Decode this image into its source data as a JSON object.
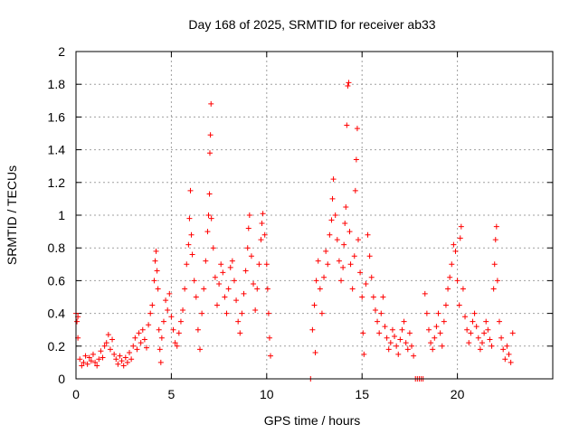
{
  "chart_data": {
    "type": "scatter",
    "title": "Day 168 of 2025, SRMTID for receiver ab33",
    "xlabel": "GPS time / hours",
    "ylabel": "SRMTID / TECUs",
    "xlim": [
      0,
      25
    ],
    "ylim": [
      0,
      2
    ],
    "xticks": [
      0,
      5,
      10,
      15,
      20
    ],
    "xtick_labels": [
      "0",
      "5",
      "10",
      "15",
      "20"
    ],
    "yticks": [
      0,
      0.2,
      0.4,
      0.6,
      0.8,
      1,
      1.2,
      1.4,
      1.6,
      1.8,
      2
    ],
    "ytick_labels": [
      "0",
      "0.2",
      "0.4",
      "0.6",
      "0.8",
      "1",
      "1.2",
      "1.4",
      "1.6",
      "1.8",
      "2"
    ],
    "grid": true,
    "marker": "+",
    "color": "#ff0000",
    "series": [
      {
        "name": "SRMTID",
        "points": [
          [
            0.0,
            0.4
          ],
          [
            0.05,
            0.35
          ],
          [
            0.1,
            0.25
          ],
          [
            0.1,
            0.38
          ],
          [
            0.2,
            0.12
          ],
          [
            0.3,
            0.08
          ],
          [
            0.4,
            0.1
          ],
          [
            0.5,
            0.14
          ],
          [
            0.6,
            0.09
          ],
          [
            0.7,
            0.13
          ],
          [
            0.8,
            0.11
          ],
          [
            0.9,
            0.15
          ],
          [
            1.0,
            0.1
          ],
          [
            1.1,
            0.08
          ],
          [
            1.2,
            0.12
          ],
          [
            1.3,
            0.17
          ],
          [
            1.4,
            0.13
          ],
          [
            1.5,
            0.2
          ],
          [
            1.6,
            0.22
          ],
          [
            1.7,
            0.27
          ],
          [
            1.8,
            0.18
          ],
          [
            1.9,
            0.24
          ],
          [
            2.0,
            0.15
          ],
          [
            2.1,
            0.12
          ],
          [
            2.2,
            0.09
          ],
          [
            2.3,
            0.14
          ],
          [
            2.4,
            0.11
          ],
          [
            2.5,
            0.08
          ],
          [
            2.6,
            0.13
          ],
          [
            2.7,
            0.1
          ],
          [
            2.8,
            0.16
          ],
          [
            2.9,
            0.12
          ],
          [
            3.0,
            0.2
          ],
          [
            3.1,
            0.25
          ],
          [
            3.2,
            0.18
          ],
          [
            3.3,
            0.28
          ],
          [
            3.4,
            0.22
          ],
          [
            3.5,
            0.3
          ],
          [
            3.6,
            0.24
          ],
          [
            3.7,
            0.19
          ],
          [
            3.8,
            0.33
          ],
          [
            3.9,
            0.4
          ],
          [
            4.0,
            0.45
          ],
          [
            4.1,
            0.6
          ],
          [
            4.15,
            0.72
          ],
          [
            4.2,
            0.78
          ],
          [
            4.25,
            0.66
          ],
          [
            4.3,
            0.55
          ],
          [
            4.35,
            0.3
          ],
          [
            4.4,
            0.18
          ],
          [
            4.45,
            0.1
          ],
          [
            4.5,
            0.25
          ],
          [
            4.6,
            0.35
          ],
          [
            4.7,
            0.48
          ],
          [
            4.8,
            0.42
          ],
          [
            4.9,
            0.52
          ],
          [
            5.0,
            0.38
          ],
          [
            5.1,
            0.3
          ],
          [
            5.2,
            0.22
          ],
          [
            5.3,
            0.2
          ],
          [
            5.4,
            0.28
          ],
          [
            5.5,
            0.35
          ],
          [
            5.6,
            0.42
          ],
          [
            5.7,
            0.55
          ],
          [
            5.8,
            0.7
          ],
          [
            5.9,
            0.82
          ],
          [
            5.95,
            0.98
          ],
          [
            6.0,
            1.15
          ],
          [
            6.05,
            0.88
          ],
          [
            6.1,
            0.76
          ],
          [
            6.2,
            0.6
          ],
          [
            6.3,
            0.5
          ],
          [
            6.4,
            0.3
          ],
          [
            6.5,
            0.18
          ],
          [
            6.6,
            0.4
          ],
          [
            6.7,
            0.55
          ],
          [
            6.8,
            0.72
          ],
          [
            6.9,
            0.9
          ],
          [
            6.95,
            1.0
          ],
          [
            7.0,
            1.13
          ],
          [
            7.02,
            1.38
          ],
          [
            7.05,
            1.49
          ],
          [
            7.08,
            1.68
          ],
          [
            7.1,
            0.98
          ],
          [
            7.2,
            0.8
          ],
          [
            7.3,
            0.62
          ],
          [
            7.4,
            0.45
          ],
          [
            7.5,
            0.58
          ],
          [
            7.6,
            0.7
          ],
          [
            7.7,
            0.65
          ],
          [
            7.8,
            0.5
          ],
          [
            7.9,
            0.4
          ],
          [
            8.0,
            0.55
          ],
          [
            8.1,
            0.68
          ],
          [
            8.2,
            0.72
          ],
          [
            8.3,
            0.6
          ],
          [
            8.4,
            0.48
          ],
          [
            8.5,
            0.35
          ],
          [
            8.6,
            0.28
          ],
          [
            8.7,
            0.4
          ],
          [
            8.8,
            0.52
          ],
          [
            8.9,
            0.66
          ],
          [
            9.0,
            0.8
          ],
          [
            9.05,
            0.92
          ],
          [
            9.1,
            1.0
          ],
          [
            9.2,
            0.75
          ],
          [
            9.3,
            0.58
          ],
          [
            9.4,
            0.42
          ],
          [
            9.5,
            0.55
          ],
          [
            9.6,
            0.7
          ],
          [
            9.7,
            0.85
          ],
          [
            9.75,
            0.95
          ],
          [
            9.8,
            1.01
          ],
          [
            9.9,
            0.88
          ],
          [
            10.0,
            0.7
          ],
          [
            10.05,
            0.55
          ],
          [
            10.1,
            0.4
          ],
          [
            10.15,
            0.25
          ],
          [
            10.2,
            0.14
          ],
          [
            12.3,
            0.0
          ],
          [
            12.4,
            0.3
          ],
          [
            12.5,
            0.45
          ],
          [
            12.55,
            0.16
          ],
          [
            12.6,
            0.6
          ],
          [
            12.7,
            0.72
          ],
          [
            12.8,
            0.55
          ],
          [
            12.9,
            0.4
          ],
          [
            13.0,
            0.62
          ],
          [
            13.1,
            0.78
          ],
          [
            13.2,
            0.7
          ],
          [
            13.3,
            0.88
          ],
          [
            13.4,
            0.97
          ],
          [
            13.45,
            1.1
          ],
          [
            13.5,
            1.22
          ],
          [
            13.6,
            1.0
          ],
          [
            13.7,
            0.85
          ],
          [
            13.8,
            0.72
          ],
          [
            13.9,
            0.6
          ],
          [
            14.0,
            0.68
          ],
          [
            14.05,
            0.82
          ],
          [
            14.1,
            0.95
          ],
          [
            14.15,
            1.05
          ],
          [
            14.2,
            1.55
          ],
          [
            14.25,
            1.79
          ],
          [
            14.3,
            1.81
          ],
          [
            14.35,
            0.9
          ],
          [
            14.4,
            0.7
          ],
          [
            14.5,
            0.55
          ],
          [
            14.6,
            0.75
          ],
          [
            14.65,
            1.15
          ],
          [
            14.7,
            1.34
          ],
          [
            14.75,
            1.53
          ],
          [
            14.8,
            0.85
          ],
          [
            14.9,
            0.65
          ],
          [
            15.0,
            0.5
          ],
          [
            15.05,
            0.28
          ],
          [
            15.1,
            0.15
          ],
          [
            15.2,
            0.58
          ],
          [
            15.3,
            0.88
          ],
          [
            15.4,
            0.75
          ],
          [
            15.5,
            0.62
          ],
          [
            15.6,
            0.5
          ],
          [
            15.7,
            0.42
          ],
          [
            15.8,
            0.35
          ],
          [
            15.9,
            0.28
          ],
          [
            16.0,
            0.4
          ],
          [
            16.1,
            0.5
          ],
          [
            16.2,
            0.32
          ],
          [
            16.3,
            0.25
          ],
          [
            16.4,
            0.18
          ],
          [
            16.5,
            0.22
          ],
          [
            16.6,
            0.3
          ],
          [
            16.7,
            0.26
          ],
          [
            16.8,
            0.2
          ],
          [
            16.9,
            0.15
          ],
          [
            17.0,
            0.24
          ],
          [
            17.1,
            0.3
          ],
          [
            17.2,
            0.35
          ],
          [
            17.3,
            0.22
          ],
          [
            17.4,
            0.18
          ],
          [
            17.5,
            0.28
          ],
          [
            17.6,
            0.2
          ],
          [
            17.7,
            0.14
          ],
          [
            17.8,
            0.0
          ],
          [
            17.9,
            0.0
          ],
          [
            18.0,
            0.0
          ],
          [
            18.1,
            0.0
          ],
          [
            18.2,
            0.0
          ],
          [
            18.3,
            0.52
          ],
          [
            18.4,
            0.4
          ],
          [
            18.5,
            0.3
          ],
          [
            18.6,
            0.22
          ],
          [
            18.7,
            0.18
          ],
          [
            18.8,
            0.25
          ],
          [
            18.9,
            0.32
          ],
          [
            19.0,
            0.4
          ],
          [
            19.1,
            0.28
          ],
          [
            19.2,
            0.2
          ],
          [
            19.3,
            0.35
          ],
          [
            19.4,
            0.45
          ],
          [
            19.5,
            0.55
          ],
          [
            19.6,
            0.62
          ],
          [
            19.7,
            0.7
          ],
          [
            19.8,
            0.82
          ],
          [
            19.9,
            0.78
          ],
          [
            20.0,
            0.6
          ],
          [
            20.1,
            0.45
          ],
          [
            20.15,
            0.86
          ],
          [
            20.2,
            0.93
          ],
          [
            20.3,
            0.55
          ],
          [
            20.4,
            0.38
          ],
          [
            20.5,
            0.3
          ],
          [
            20.6,
            0.22
          ],
          [
            20.7,
            0.28
          ],
          [
            20.8,
            0.35
          ],
          [
            20.9,
            0.4
          ],
          [
            21.0,
            0.32
          ],
          [
            21.1,
            0.25
          ],
          [
            21.2,
            0.18
          ],
          [
            21.3,
            0.22
          ],
          [
            21.4,
            0.28
          ],
          [
            21.5,
            0.35
          ],
          [
            21.6,
            0.3
          ],
          [
            21.7,
            0.24
          ],
          [
            21.8,
            0.2
          ],
          [
            21.9,
            0.55
          ],
          [
            21.95,
            0.7
          ],
          [
            22.0,
            0.85
          ],
          [
            22.05,
            0.93
          ],
          [
            22.1,
            0.6
          ],
          [
            22.2,
            0.35
          ],
          [
            22.3,
            0.25
          ],
          [
            22.4,
            0.18
          ],
          [
            22.5,
            0.12
          ],
          [
            22.6,
            0.2
          ],
          [
            22.7,
            0.15
          ],
          [
            22.8,
            0.1
          ],
          [
            22.9,
            0.28
          ]
        ]
      }
    ]
  }
}
